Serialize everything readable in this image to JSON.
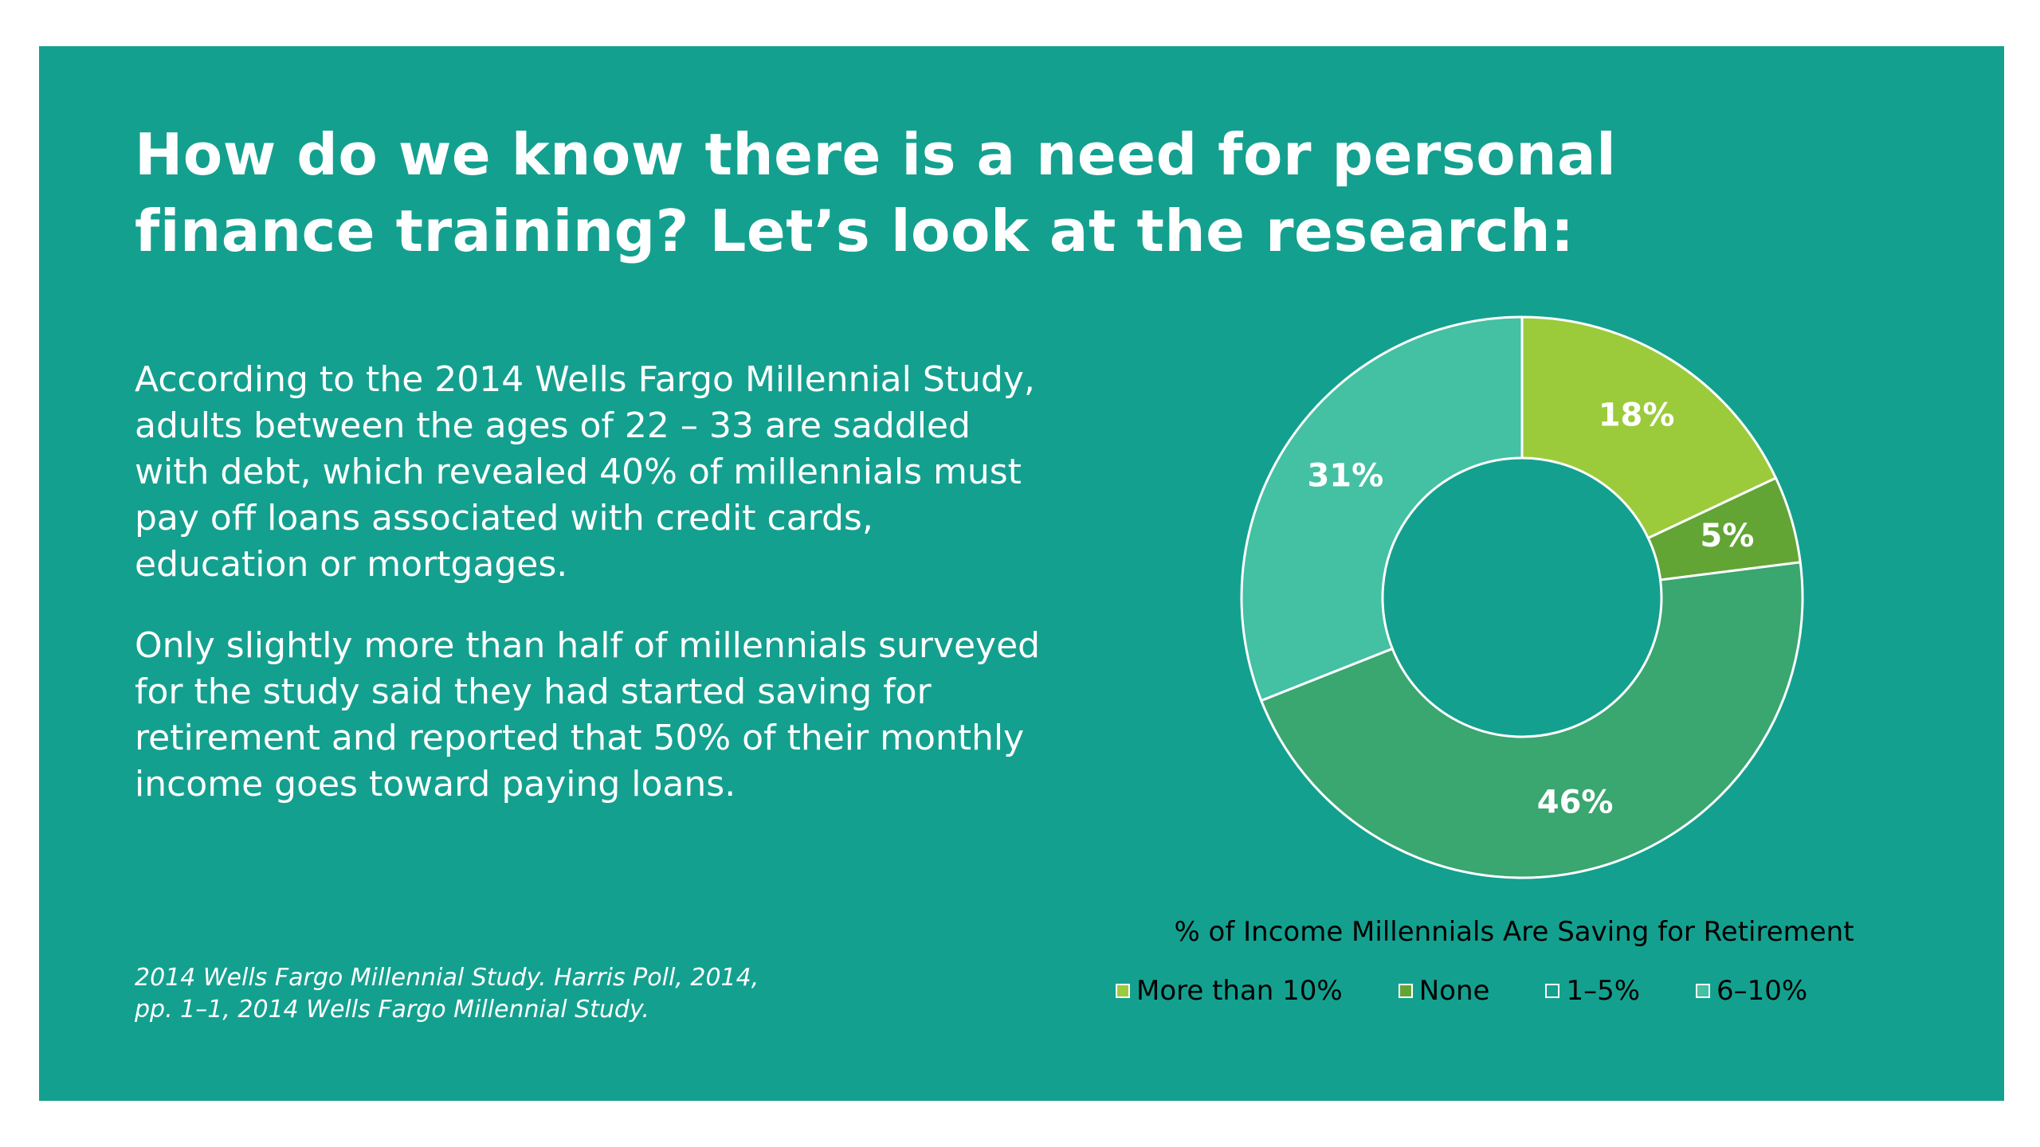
{
  "slide": {
    "title_lines": [
      "How do we know there is a need for personal",
      "finance training? Let’s look at the research:"
    ],
    "paragraphs": [
      "According to the 2014 Wells Fargo Millennial Study, adults between the ages of 22 – 33 are saddled with debt, which revealed 40% of millennials must pay off loans associated with credit cards, education or mortgages.",
      "Only slightly more than half of millennials surveyed for the study said they had started saving for retirement and reported that 50% of their monthly income goes toward paying loans."
    ],
    "citation_lines": [
      "2014 Wells Fargo Millennial Study. Harris Poll, 2014,",
      "pp. 1–1, 2014 Wells Fargo Millennial Study."
    ],
    "colors": {
      "background": "#14a08f",
      "text": "#ffffff"
    }
  },
  "chart_data": {
    "type": "pie",
    "style": "donut",
    "title": "% of Income Millennials Are Saving for Retirement",
    "categories": [
      "More than 10%",
      "None",
      "1–5%",
      "6–10%"
    ],
    "values": [
      18,
      5,
      46,
      31
    ],
    "data_labels": [
      "18%",
      "5%",
      "46%",
      "31%"
    ],
    "colors": [
      "#9bcb3b",
      "#62a535",
      "#3aa670",
      "#44c0a3"
    ],
    "legend_labels": [
      "More than 10%",
      "None",
      "1–5%",
      "6–10%"
    ],
    "legend_colors": [
      "#9bcb3b",
      "#62a535",
      "#14a08f",
      "#44c0a3"
    ],
    "legend_position": "bottom"
  }
}
